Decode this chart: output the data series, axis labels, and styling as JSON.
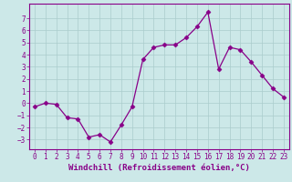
{
  "x": [
    0,
    1,
    2,
    3,
    4,
    5,
    6,
    7,
    8,
    9,
    10,
    11,
    12,
    13,
    14,
    15,
    16,
    17,
    18,
    19,
    20,
    21,
    22,
    23
  ],
  "y": [
    -0.3,
    0.0,
    -0.1,
    -1.2,
    -1.3,
    -2.8,
    -2.6,
    -3.2,
    -1.8,
    -0.3,
    3.6,
    4.6,
    4.8,
    4.8,
    5.4,
    6.3,
    7.5,
    2.8,
    4.6,
    4.4,
    3.4,
    2.3,
    1.2,
    0.5
  ],
  "line_color": "#880088",
  "marker": "D",
  "marker_size": 2.5,
  "bg_color": "#cce8e8",
  "grid_color": "#aacccc",
  "axis_color": "#880088",
  "xlabel": "Windchill (Refroidissement éolien,°C)",
  "ylabel": "",
  "ylim": [
    -3.8,
    8.2
  ],
  "xlim": [
    -0.5,
    23.5
  ],
  "yticks": [
    -3,
    -2,
    -1,
    0,
    1,
    2,
    3,
    4,
    5,
    6,
    7
  ],
  "xticks": [
    0,
    1,
    2,
    3,
    4,
    5,
    6,
    7,
    8,
    9,
    10,
    11,
    12,
    13,
    14,
    15,
    16,
    17,
    18,
    19,
    20,
    21,
    22,
    23
  ],
  "tick_fontsize": 5.5,
  "xlabel_fontsize": 6.5
}
